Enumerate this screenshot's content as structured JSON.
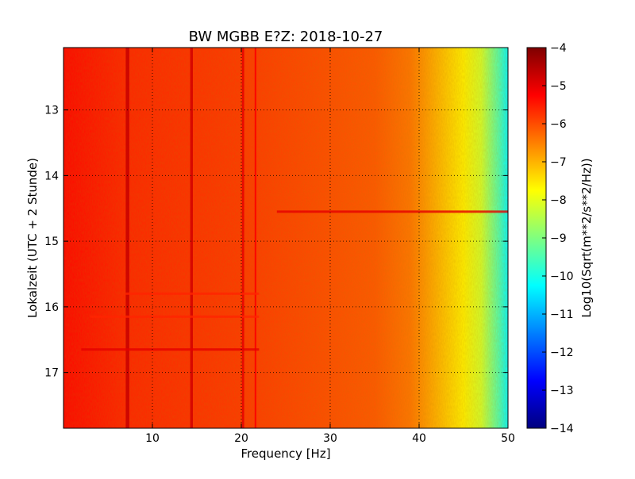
{
  "chart_data": {
    "type": "heatmap",
    "title": "BW MGBB E?Z: 2018-10-27",
    "xlabel": "Frequency [Hz]",
    "ylabel": "Lokalzeit (UTC + 2 Stunde)",
    "colorbar_label": "Log10(Sqrt(m**2/s**2/Hz))",
    "colormap": "jet",
    "x_range": [
      0,
      50
    ],
    "y_range": [
      12.05,
      17.85
    ],
    "y_inverted": true,
    "x_ticks": [
      10,
      20,
      30,
      40,
      50
    ],
    "x_tick_labels": [
      "10",
      "20",
      "30",
      "40",
      "50"
    ],
    "y_ticks": [
      13,
      14,
      15,
      16,
      17
    ],
    "y_tick_labels": [
      "13",
      "14",
      "15",
      "16",
      "17"
    ],
    "colorbar_range": [
      -14,
      -4
    ],
    "colorbar_ticks": [
      -4,
      -5,
      -6,
      -7,
      -8,
      -9,
      -10,
      -11,
      -12,
      -13,
      -14
    ],
    "colorbar_tick_labels": [
      "−4",
      "−5",
      "−6",
      "−7",
      "−8",
      "−9",
      "−10",
      "−11",
      "−12",
      "−13",
      "−14"
    ],
    "grid": true,
    "baseline_profile": [
      {
        "freq": 0,
        "value": -5.3
      },
      {
        "freq": 7,
        "value": -5.6
      },
      {
        "freq": 20,
        "value": -5.8
      },
      {
        "freq": 35,
        "value": -6.1
      },
      {
        "freq": 39,
        "value": -6.4
      },
      {
        "freq": 41,
        "value": -6.8
      },
      {
        "freq": 43,
        "value": -7.2
      },
      {
        "freq": 45,
        "value": -7.6
      },
      {
        "freq": 47,
        "value": -8.2
      },
      {
        "freq": 49,
        "value": -9.5
      },
      {
        "freq": 50,
        "value": -10.3
      }
    ],
    "vertical_features": [
      {
        "freq": 7.2,
        "width_hz": 0.4,
        "value": -4.7
      },
      {
        "freq": 14.4,
        "width_hz": 0.3,
        "value": -4.8
      },
      {
        "freq": 20.2,
        "width_hz": 0.25,
        "value": -5.0
      },
      {
        "freq": 21.6,
        "width_hz": 0.2,
        "value": -5.2
      }
    ],
    "horizontal_features": [
      {
        "time": 14.55,
        "freq_start": 24,
        "freq_end": 50,
        "value": -5.0
      },
      {
        "time": 16.15,
        "freq_start": 3,
        "freq_end": 22,
        "value": -5.6
      },
      {
        "time": 16.65,
        "freq_start": 2,
        "freq_end": 22,
        "value": -5.0
      },
      {
        "time": 15.8,
        "freq_start": 7,
        "freq_end": 22,
        "value": -5.6
      }
    ]
  }
}
